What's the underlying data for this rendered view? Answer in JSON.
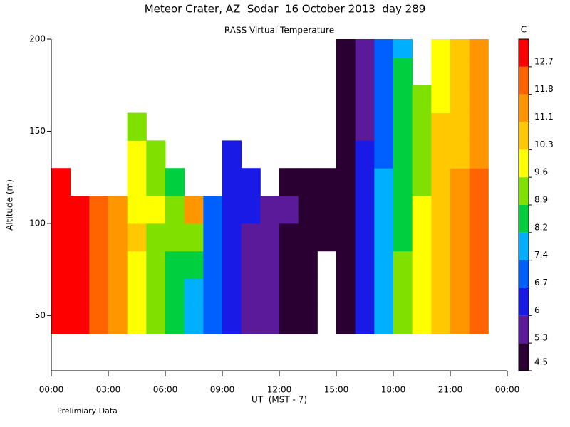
{
  "chart_data": {
    "type": "heatmap",
    "title": "Meteor Crater, AZ  Sodar  16 October 2013  day 289",
    "subtitle": "RASS Virtual Temperature",
    "ylabel": "Altitude (m)",
    "xlabel": "UT  (MST - 7)",
    "note": "Prelimiary Data",
    "colorbar_label": "C",
    "xlim": [
      0,
      24
    ],
    "ylim": [
      20,
      200
    ],
    "xticks": [
      {
        "value": 0,
        "label": "00:00"
      },
      {
        "value": 3,
        "label": "03:00"
      },
      {
        "value": 6,
        "label": "06:00"
      },
      {
        "value": 9,
        "label": "09:00"
      },
      {
        "value": 12,
        "label": "12:00"
      },
      {
        "value": 15,
        "label": "15:00"
      },
      {
        "value": 18,
        "label": "18:00"
      },
      {
        "value": 21,
        "label": "21:00"
      },
      {
        "value": 24,
        "label": "00:00"
      }
    ],
    "yticks": [
      50,
      100,
      150,
      200
    ],
    "x_bins": [
      0,
      1,
      2,
      3,
      4,
      5,
      6,
      7,
      8,
      9,
      10,
      11,
      12,
      13,
      14,
      15,
      16,
      17,
      18,
      19,
      20,
      21,
      22,
      23
    ],
    "y_bins": [
      40,
      55,
      70,
      85,
      100,
      115,
      130,
      145,
      160,
      175,
      190,
      200
    ],
    "z": [
      [
        12.9,
        13.0,
        13.0,
        12.9,
        13.0,
        13.1,
        null,
        null,
        null,
        null,
        null
      ],
      [
        13.0,
        12.9,
        12.8,
        12.9,
        13.0,
        null,
        null,
        null,
        null,
        null,
        null
      ],
      [
        12.0,
        12.2,
        12.1,
        12.3,
        12.4,
        null,
        null,
        null,
        null,
        null,
        null
      ],
      [
        11.4,
        11.5,
        11.6,
        11.3,
        11.2,
        null,
        null,
        null,
        null,
        null,
        null
      ],
      [
        10.0,
        10.1,
        10.2,
        10.3,
        10.0,
        9.8,
        9.6,
        9.4,
        null,
        null,
        null
      ],
      [
        9.2,
        9.3,
        9.0,
        9.4,
        9.7,
        9.5,
        9.2,
        null,
        null,
        null,
        null
      ],
      [
        8.4,
        8.5,
        8.7,
        8.9,
        9.0,
        8.8,
        null,
        null,
        null,
        null,
        null
      ],
      [
        7.6,
        7.8,
        8.5,
        9.5,
        11.2,
        null,
        null,
        null,
        null,
        null,
        null
      ],
      [
        6.9,
        7.0,
        7.1,
        7.0,
        6.9,
        null,
        null,
        null,
        null,
        null,
        null
      ],
      [
        6.3,
        6.4,
        6.2,
        6.3,
        6.5,
        6.6,
        6.4,
        null,
        null,
        null,
        null
      ],
      [
        5.7,
        5.6,
        5.8,
        5.9,
        6.1,
        6.2,
        null,
        null,
        null,
        null,
        null
      ],
      [
        5.4,
        5.5,
        5.6,
        5.5,
        5.7,
        null,
        null,
        null,
        null,
        null,
        null
      ],
      [
        4.9,
        5.0,
        5.1,
        5.2,
        5.3,
        5.0,
        null,
        null,
        null,
        null,
        null
      ],
      [
        4.8,
        4.8,
        4.9,
        5.0,
        5.0,
        4.9,
        null,
        null,
        null,
        null,
        null
      ],
      [
        null,
        null,
        null,
        4.7,
        4.8,
        4.9,
        null,
        null,
        null,
        null,
        null
      ],
      [
        5.2,
        5.1,
        5.0,
        5.1,
        5.2,
        5.0,
        4.9,
        4.8,
        4.9,
        4.8,
        4.8
      ],
      [
        6.6,
        6.5,
        6.4,
        6.3,
        6.2,
        6.1,
        6.0,
        5.8,
        5.9,
        5.8,
        5.7
      ],
      [
        8.0,
        7.9,
        7.8,
        7.6,
        7.5,
        7.4,
        7.3,
        7.2,
        7.0,
        6.9,
        6.8
      ],
      [
        9.2,
        9.0,
        8.9,
        8.8,
        8.7,
        8.6,
        8.5,
        8.4,
        8.3,
        8.2,
        8.0
      ],
      [
        10.0,
        9.9,
        9.8,
        9.7,
        9.6,
        9.5,
        9.4,
        9.3,
        9.2,
        null,
        null
      ],
      [
        11.0,
        10.9,
        10.8,
        10.7,
        10.6,
        10.5,
        10.4,
        10.3,
        10.2,
        10.1,
        10.0
      ],
      [
        11.6,
        11.5,
        11.4,
        11.3,
        11.2,
        11.1,
        11.0,
        10.9,
        10.8,
        10.7,
        10.6
      ],
      [
        12.3,
        12.2,
        12.1,
        12.0,
        11.9,
        11.8,
        11.7,
        11.6,
        11.5,
        11.4,
        11.3
      ]
    ],
    "levels": [
      4.5,
      5.3,
      6.0,
      6.7,
      7.4,
      8.2,
      8.9,
      9.6,
      10.3,
      11.1,
      11.8,
      12.7
    ],
    "colors": [
      "#2a0033",
      "#5a1a99",
      "#1a1ae6",
      "#0060ff",
      "#00b0ff",
      "#00d040",
      "#80e000",
      "#ffff00",
      "#ffc800",
      "#ff9600",
      "#ff6400",
      "#ff0000"
    ]
  }
}
